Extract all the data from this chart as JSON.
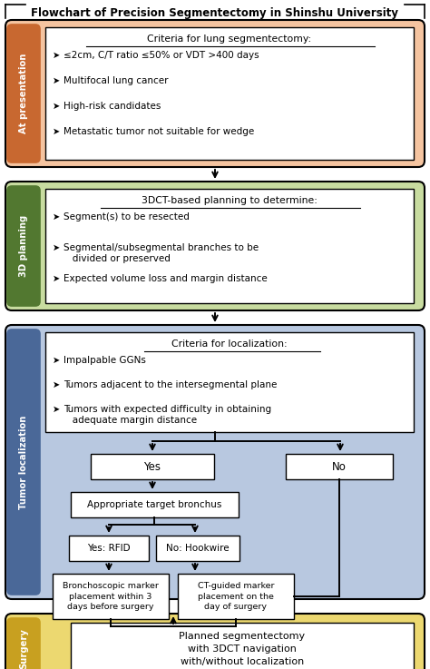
{
  "title": "Flowchart of Precision Segmentectomy in Shinshu University",
  "bg": "#ffffff",
  "s1_bg": "#F5C4A0",
  "s1_label_bg": "#C86830",
  "s1_label": "At presentation",
  "s1_title": "Criteria for lung segmentectomy:",
  "s1_bullets": [
    "≤2cm, C/T ratio ≤50% or VDT >400 days",
    "Multifocal lung cancer",
    "High-risk candidates",
    "Metastatic tumor not suitable for wedge"
  ],
  "s2_bg": "#C8DCA0",
  "s2_label_bg": "#527830",
  "s2_label": "3D planning",
  "s2_title": "3DCT-based planning to determine:",
  "s2_bullets": [
    "Segment(s) to be resected",
    "Segmental/subsegmental branches to be\n   divided or preserved",
    "Expected volume loss and margin distance"
  ],
  "s3_bg": "#B8C8E0",
  "s3_label_bg": "#4A6898",
  "s3_label": "Tumor localization",
  "s3_title": "Criteria for localization:",
  "s3_bullets": [
    "Impalpable GGNs",
    "Tumors adjacent to the intersegmental plane",
    "Tumors with expected difficulty in obtaining\n   adequate margin distance"
  ],
  "s4_bg": "#ECD870",
  "s4_label_bg": "#C8A020",
  "s4_label": "Surgery",
  "s4_text": "Planned segmentectomy\nwith 3DCT navigation\nwith/without localization",
  "yes_text": "Yes",
  "no_text": "No",
  "atb_text": "Appropriate target bronchus",
  "rfid_text": "Yes: RFID",
  "hw_text": "No: Hookwire",
  "bron_text": "Bronchoscopic marker\nplacement within 3\ndays before surgery",
  "ctg_text": "CT-guided marker\nplacement on the\nday of surgery"
}
